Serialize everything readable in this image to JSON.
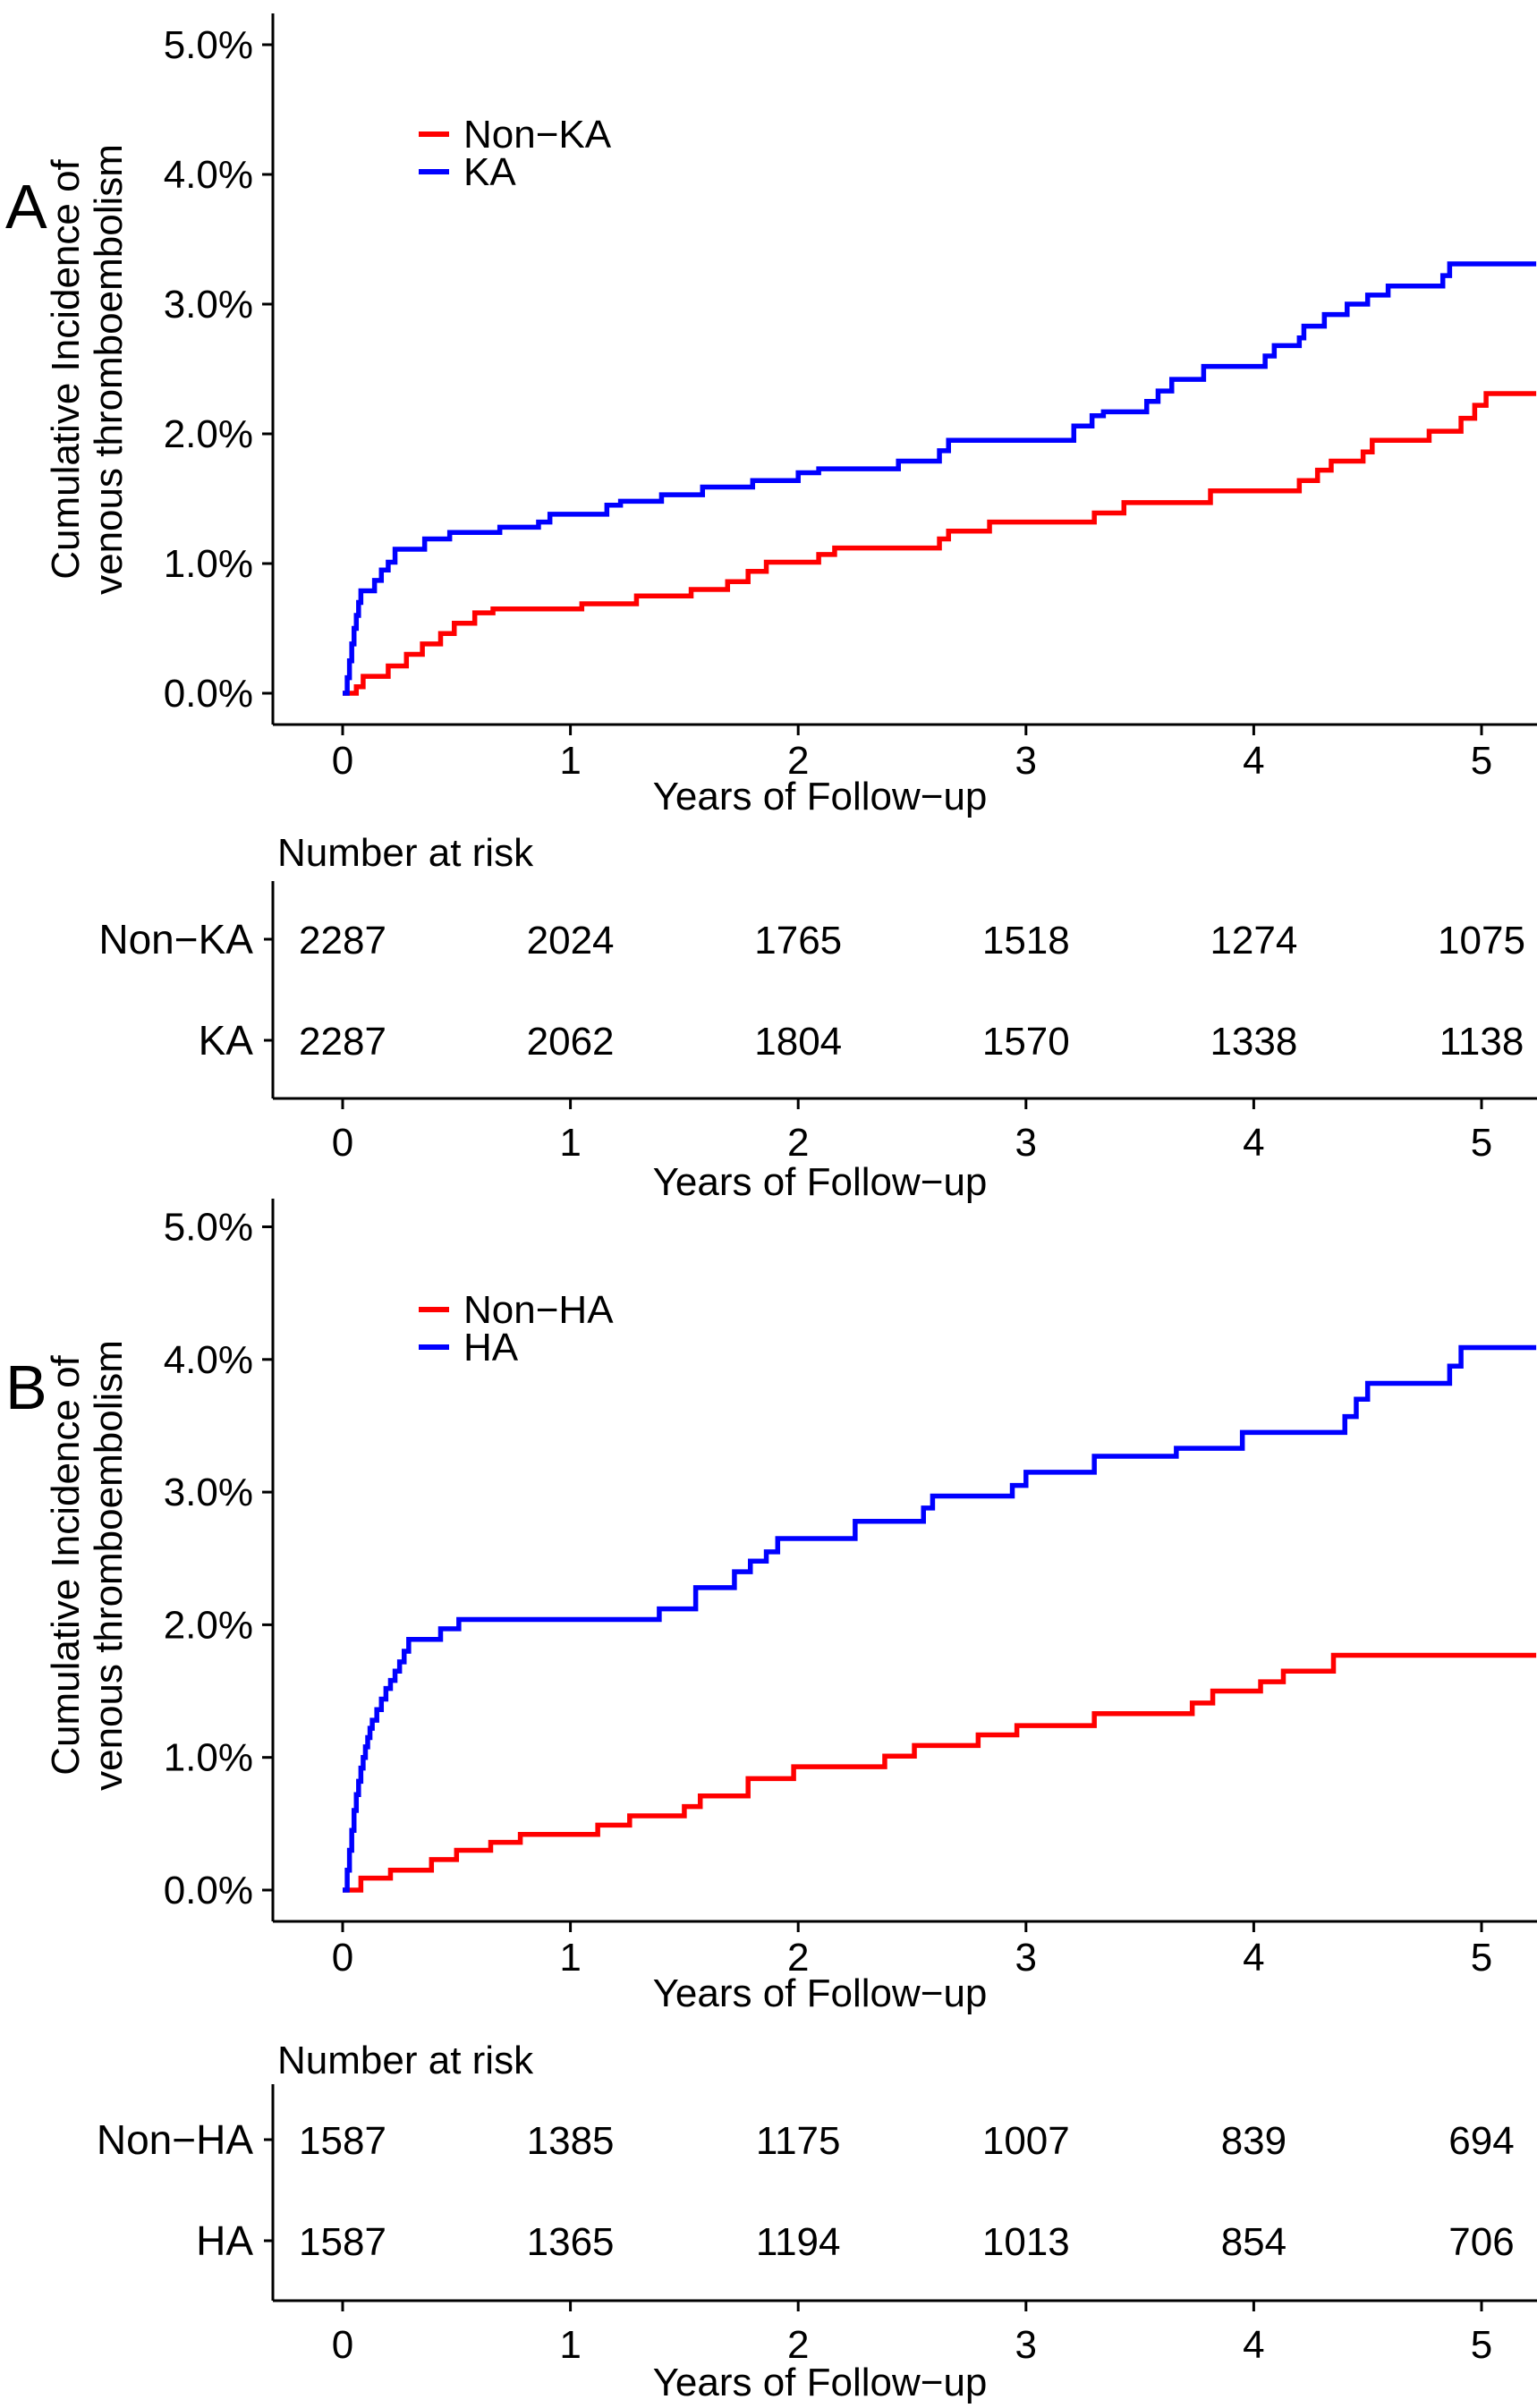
{
  "figure": {
    "background": "#ffffff",
    "text_color": "#000000",
    "axis_color": "#000000"
  },
  "chart_data": [
    {
      "panel_label": "A",
      "type": "line",
      "subtype": "step",
      "title": "",
      "xlabel": "Years of Follow−up",
      "ylabel_lines": [
        "Cumulative Incidence of",
        "venous thromboembolism"
      ],
      "xlim": [
        -0.3,
        5.24
      ],
      "ylim": [
        -0.25,
        5.35
      ],
      "xticks": [
        "0",
        "1",
        "2",
        "3",
        "4",
        "5"
      ],
      "ytick_values": [
        0,
        1,
        2,
        3,
        4,
        5
      ],
      "ytick_labels": [
        "0.0%",
        "1.0%",
        "2.0%",
        "3.0%",
        "4.0%",
        "5.0%"
      ],
      "grid": false,
      "legend_position": "top-left-inside",
      "series": [
        {
          "name": "Non−KA",
          "color": "#ff0000",
          "points": [
            [
              0,
              0
            ],
            [
              0.06,
              0.05
            ],
            [
              0.09,
              0.13
            ],
            [
              0.2,
              0.21
            ],
            [
              0.28,
              0.3
            ],
            [
              0.35,
              0.38
            ],
            [
              0.43,
              0.46
            ],
            [
              0.49,
              0.54
            ],
            [
              0.58,
              0.62
            ],
            [
              0.66,
              0.65
            ],
            [
              1.05,
              0.69
            ],
            [
              1.29,
              0.75
            ],
            [
              1.53,
              0.8
            ],
            [
              1.69,
              0.86
            ],
            [
              1.78,
              0.94
            ],
            [
              1.86,
              1.01
            ],
            [
              2.09,
              1.07
            ],
            [
              2.16,
              1.12
            ],
            [
              2.62,
              1.19
            ],
            [
              2.66,
              1.25
            ],
            [
              2.84,
              1.32
            ],
            [
              3.3,
              1.39
            ],
            [
              3.43,
              1.47
            ],
            [
              3.81,
              1.56
            ],
            [
              4.2,
              1.64
            ],
            [
              4.28,
              1.72
            ],
            [
              4.34,
              1.79
            ],
            [
              4.48,
              1.86
            ],
            [
              4.52,
              1.95
            ],
            [
              4.77,
              2.02
            ],
            [
              4.91,
              2.12
            ],
            [
              4.97,
              2.22
            ],
            [
              5.02,
              2.31
            ],
            [
              5.24,
              2.31
            ]
          ]
        },
        {
          "name": "KA",
          "color": "#0000ff",
          "points": [
            [
              0,
              0
            ],
            [
              0.02,
              0.12
            ],
            [
              0.03,
              0.25
            ],
            [
              0.04,
              0.38
            ],
            [
              0.05,
              0.5
            ],
            [
              0.06,
              0.6
            ],
            [
              0.07,
              0.7
            ],
            [
              0.08,
              0.79
            ],
            [
              0.14,
              0.87
            ],
            [
              0.17,
              0.95
            ],
            [
              0.2,
              1.01
            ],
            [
              0.23,
              1.11
            ],
            [
              0.36,
              1.19
            ],
            [
              0.47,
              1.24
            ],
            [
              0.69,
              1.28
            ],
            [
              0.86,
              1.32
            ],
            [
              0.91,
              1.38
            ],
            [
              1.16,
              1.45
            ],
            [
              1.22,
              1.48
            ],
            [
              1.4,
              1.53
            ],
            [
              1.58,
              1.59
            ],
            [
              1.8,
              1.64
            ],
            [
              2,
              1.7
            ],
            [
              2.09,
              1.73
            ],
            [
              2.44,
              1.79
            ],
            [
              2.62,
              1.87
            ],
            [
              2.66,
              1.95
            ],
            [
              3.21,
              2.06
            ],
            [
              3.29,
              2.14
            ],
            [
              3.34,
              2.17
            ],
            [
              3.53,
              2.25
            ],
            [
              3.58,
              2.33
            ],
            [
              3.64,
              2.42
            ],
            [
              3.78,
              2.52
            ],
            [
              4.05,
              2.6
            ],
            [
              4.09,
              2.68
            ],
            [
              4.2,
              2.74
            ],
            [
              4.22,
              2.83
            ],
            [
              4.31,
              2.92
            ],
            [
              4.41,
              3
            ],
            [
              4.5,
              3.07
            ],
            [
              4.59,
              3.14
            ],
            [
              4.83,
              3.22
            ],
            [
              4.86,
              3.31
            ],
            [
              5.24,
              3.31
            ]
          ]
        }
      ],
      "number_at_risk": {
        "title": "Number at risk",
        "xlabel": "Years of Follow−up",
        "times": [
          "0",
          "1",
          "2",
          "3",
          "4",
          "5"
        ],
        "rows": [
          {
            "label": "Non−KA",
            "values": [
              "2287",
              "2024",
              "1765",
              "1518",
              "1274",
              "1075"
            ]
          },
          {
            "label": "KA",
            "values": [
              "2287",
              "2062",
              "1804",
              "1570",
              "1338",
              "1138"
            ]
          }
        ]
      }
    },
    {
      "panel_label": "B",
      "type": "line",
      "subtype": "step",
      "title": "",
      "xlabel": "Years of Follow−up",
      "ylabel_lines": [
        "Cumulative Incidence of",
        "venous thromboembolism"
      ],
      "xlim": [
        -0.3,
        5.24
      ],
      "ylim": [
        -0.25,
        5.35
      ],
      "xticks": [
        "0",
        "1",
        "2",
        "3",
        "4",
        "5"
      ],
      "ytick_values": [
        0,
        1,
        2,
        3,
        4,
        5
      ],
      "ytick_labels": [
        "0.0%",
        "1.0%",
        "2.0%",
        "3.0%",
        "4.0%",
        "5.0%"
      ],
      "grid": false,
      "legend_position": "top-left-inside",
      "series": [
        {
          "name": "Non−HA",
          "color": "#ff0000",
          "points": [
            [
              0,
              0
            ],
            [
              0.08,
              0.09
            ],
            [
              0.21,
              0.15
            ],
            [
              0.39,
              0.23
            ],
            [
              0.5,
              0.3
            ],
            [
              0.65,
              0.36
            ],
            [
              0.78,
              0.42
            ],
            [
              1.12,
              0.49
            ],
            [
              1.26,
              0.56
            ],
            [
              1.5,
              0.63
            ],
            [
              1.57,
              0.71
            ],
            [
              1.78,
              0.84
            ],
            [
              1.98,
              0.93
            ],
            [
              2.38,
              1.01
            ],
            [
              2.51,
              1.09
            ],
            [
              2.79,
              1.17
            ],
            [
              2.96,
              1.24
            ],
            [
              3.3,
              1.33
            ],
            [
              3.73,
              1.41
            ],
            [
              3.82,
              1.5
            ],
            [
              4.03,
              1.57
            ],
            [
              4.13,
              1.65
            ],
            [
              4.35,
              1.77
            ],
            [
              5.24,
              1.77
            ]
          ]
        },
        {
          "name": "HA",
          "color": "#0000ff",
          "points": [
            [
              0,
              0
            ],
            [
              0.02,
              0.15
            ],
            [
              0.03,
              0.3
            ],
            [
              0.04,
              0.45
            ],
            [
              0.05,
              0.6
            ],
            [
              0.06,
              0.72
            ],
            [
              0.07,
              0.82
            ],
            [
              0.08,
              0.92
            ],
            [
              0.09,
              1
            ],
            [
              0.1,
              1.08
            ],
            [
              0.11,
              1.15
            ],
            [
              0.12,
              1.22
            ],
            [
              0.13,
              1.28
            ],
            [
              0.15,
              1.36
            ],
            [
              0.17,
              1.44
            ],
            [
              0.19,
              1.52
            ],
            [
              0.21,
              1.58
            ],
            [
              0.23,
              1.65
            ],
            [
              0.25,
              1.72
            ],
            [
              0.27,
              1.8
            ],
            [
              0.29,
              1.89
            ],
            [
              0.43,
              1.97
            ],
            [
              0.51,
              2.04
            ],
            [
              1.39,
              2.12
            ],
            [
              1.55,
              2.28
            ],
            [
              1.72,
              2.4
            ],
            [
              1.79,
              2.48
            ],
            [
              1.86,
              2.55
            ],
            [
              1.91,
              2.65
            ],
            [
              2.25,
              2.78
            ],
            [
              2.55,
              2.88
            ],
            [
              2.59,
              2.97
            ],
            [
              2.94,
              3.05
            ],
            [
              3,
              3.15
            ],
            [
              3.3,
              3.27
            ],
            [
              3.66,
              3.33
            ],
            [
              3.95,
              3.45
            ],
            [
              4.4,
              3.57
            ],
            [
              4.45,
              3.7
            ],
            [
              4.5,
              3.82
            ],
            [
              4.86,
              3.95
            ],
            [
              4.91,
              4.09
            ],
            [
              5.24,
              4.09
            ]
          ]
        }
      ],
      "number_at_risk": {
        "title": "Number at risk",
        "xlabel": "Years of Follow−up",
        "times": [
          "0",
          "1",
          "2",
          "3",
          "4",
          "5"
        ],
        "rows": [
          {
            "label": "Non−HA",
            "values": [
              "1587",
              "1385",
              "1175",
              "1007",
              "839",
              "694"
            ]
          },
          {
            "label": "HA",
            "values": [
              "1587",
              "1365",
              "1194",
              "1013",
              "854",
              "706"
            ]
          }
        ]
      }
    }
  ]
}
